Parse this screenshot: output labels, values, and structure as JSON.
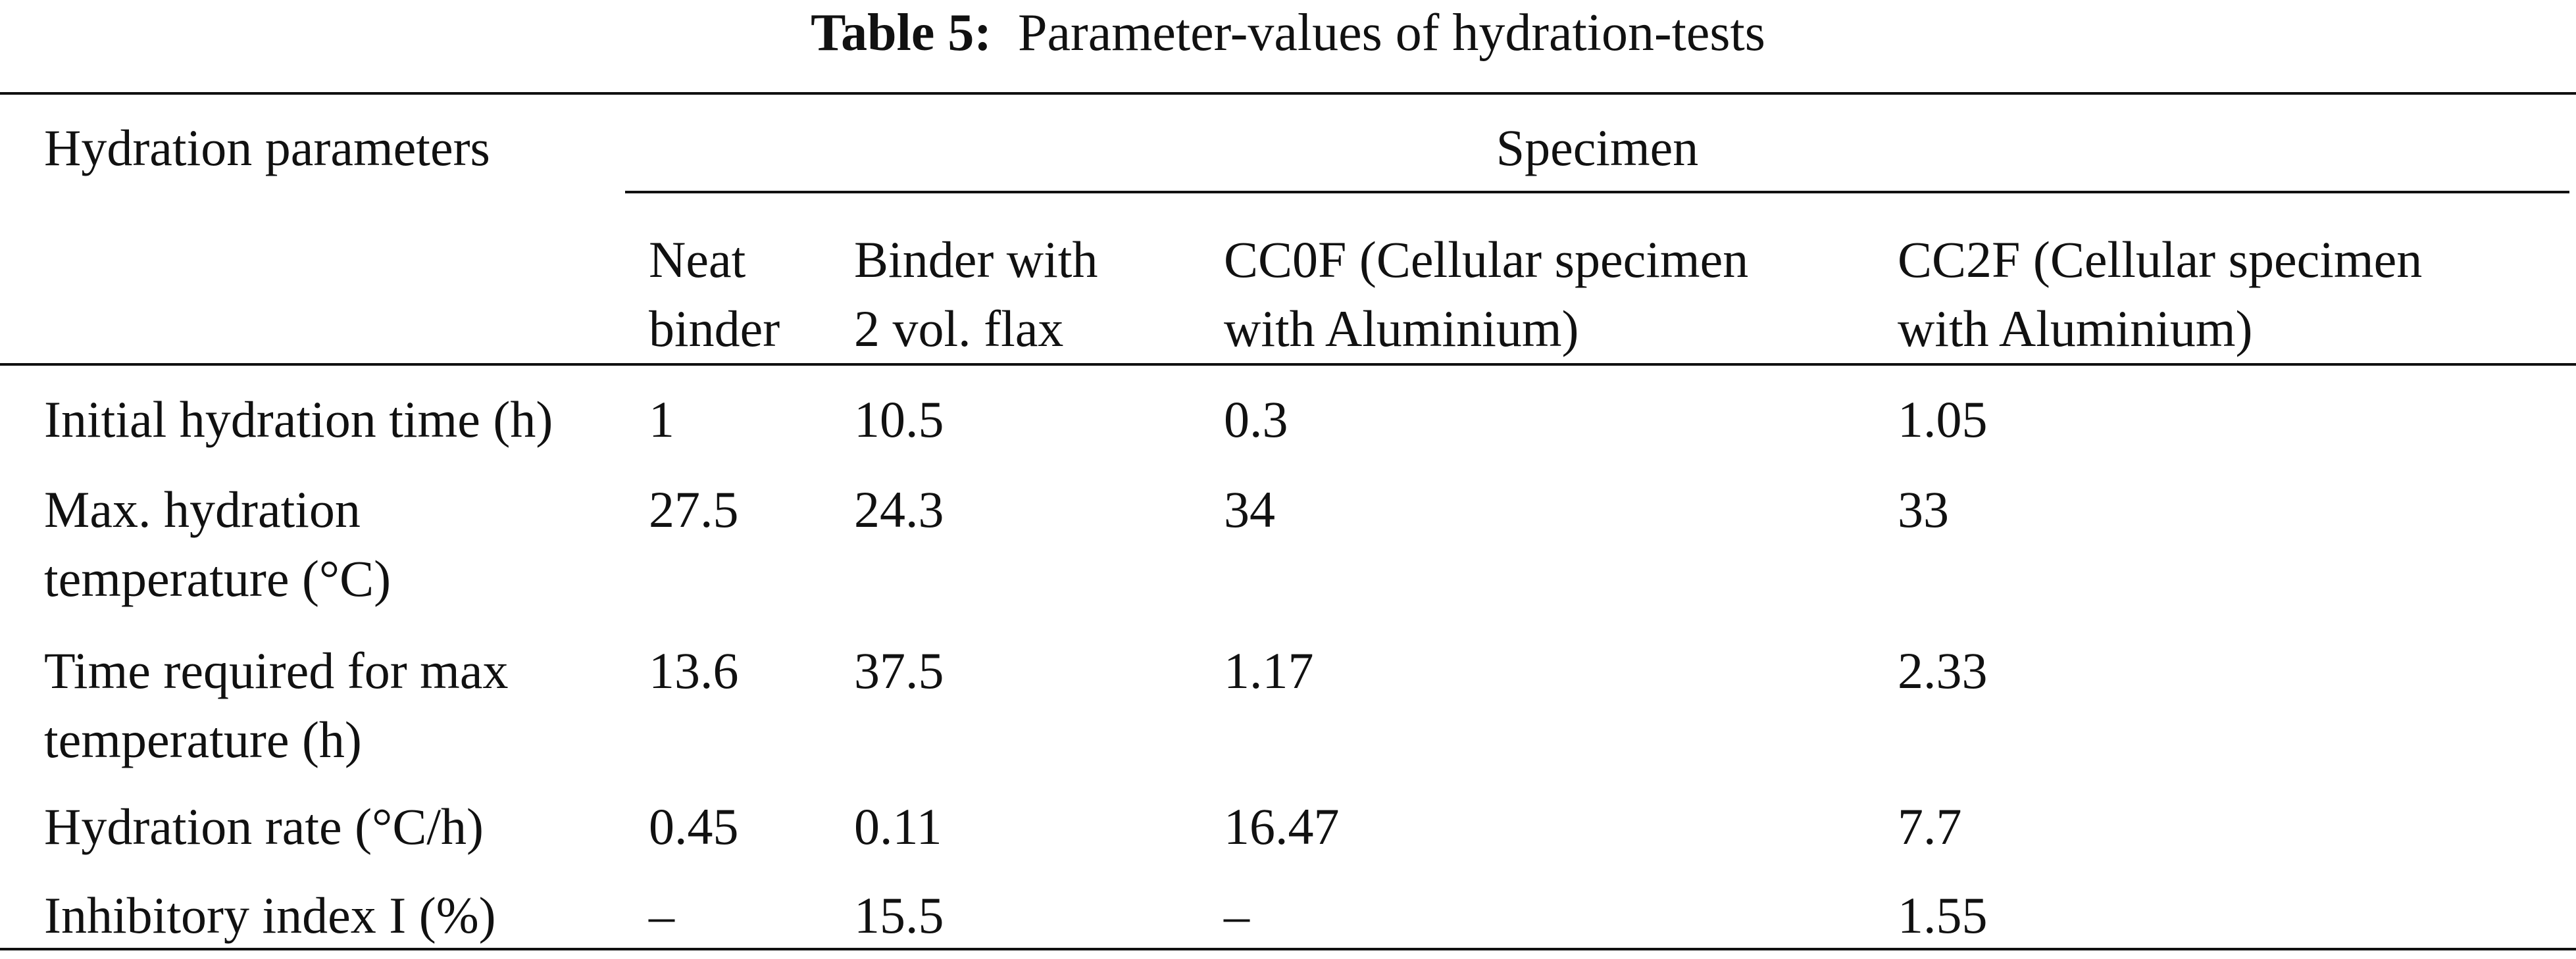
{
  "caption": {
    "label": "Table 5:",
    "text": "Parameter-values of hydration-tests"
  },
  "table": {
    "corner": "Hydration parameters",
    "group": "Specimen",
    "columns": [
      [
        "Neat",
        "binder"
      ],
      [
        "Binder with",
        "2 vol. flax"
      ],
      [
        "CC0F (Cellular specimen",
        "with Aluminium)"
      ],
      [
        "CC2F (Cellular specimen",
        "with Aluminium)"
      ]
    ],
    "rows": [
      [
        [
          "Initial hydration time (h)"
        ],
        "1",
        "10.5",
        "0.3",
        "1.05"
      ],
      [
        [
          "Max. hydration",
          "temperature (°C)"
        ],
        "27.5",
        "24.3",
        "34",
        "33"
      ],
      [
        [
          "Time required for max",
          "temperature (h)"
        ],
        "13.6",
        "37.5",
        "1.17",
        "2.33"
      ],
      [
        [
          "Hydration rate (°C/h)"
        ],
        "0.45",
        "0.11",
        "16.47",
        "7.7"
      ],
      [
        [
          "Inhibitory index I (%)"
        ],
        "–",
        "15.5",
        "–",
        "1.55"
      ]
    ]
  }
}
